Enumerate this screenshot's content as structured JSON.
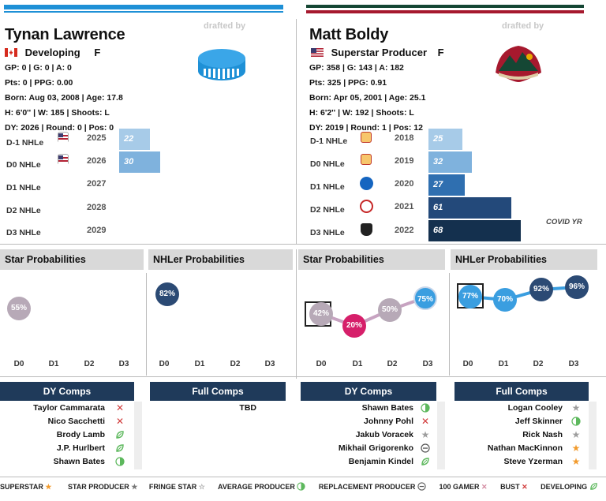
{
  "left": {
    "name": "Tynan Lawrence",
    "drafted_by": "drafted by",
    "status": "Developing",
    "position": "F",
    "stats": [
      "GP: 0 | G: 0 | A: 0",
      "Pts: 0 | PPG: 0.00",
      "Born: Aug 03, 2008 | Age: 17.8",
      "H: 6'0'' | W: 185 | Shoots: L",
      "DY: 2026 | Round: 0 | Pos: 0"
    ],
    "nhle": [
      {
        "label": "D-1 NHLe",
        "year": "2025",
        "value": "22"
      },
      {
        "label": "D0 NHLe",
        "year": "2026",
        "value": "30"
      },
      {
        "label": "D1 NHLe",
        "year": "2027",
        "value": ""
      },
      {
        "label": "D2 NHLe",
        "year": "2028",
        "value": ""
      },
      {
        "label": "D3 NHLe",
        "year": "2029",
        "value": ""
      }
    ],
    "star_title": "Star Probabilities",
    "nhler_title": "NHLer Probabilities",
    "star_probs": [
      "55%"
    ],
    "nhler_probs": [
      "82%"
    ],
    "d_labels": [
      "D0",
      "D1",
      "D2",
      "D3"
    ],
    "dy_comps_title": "DY Comps",
    "full_comps_title": "Full Comps",
    "dy_comps": [
      "Taylor Cammarata",
      "Nico Sacchetti",
      "Brody Lamb",
      "J.P. Hurlbert",
      "Shawn Bates"
    ],
    "full_comps": [
      "TBD"
    ]
  },
  "right": {
    "name": "Matt Boldy",
    "drafted_by": "drafted by",
    "status": "Superstar Producer",
    "position": "F",
    "stats": [
      "GP: 358 | G: 143 | A: 182",
      "Pts: 325 | PPG: 0.91",
      "Born: Apr 05, 2001 | Age: 25.1",
      "H: 6'2'' | W: 192 | Shoots: L",
      "DY: 2019 | Round: 1 | Pos: 12"
    ],
    "nhle": [
      {
        "label": "D-1 NHLe",
        "year": "2018",
        "value": "25"
      },
      {
        "label": "D0 NHLe",
        "year": "2019",
        "value": "32"
      },
      {
        "label": "D1 NHLe",
        "year": "2020",
        "value": "27"
      },
      {
        "label": "D2 NHLe",
        "year": "2021",
        "value": "61"
      },
      {
        "label": "D3 NHLe",
        "year": "2022",
        "value": "68"
      }
    ],
    "covid_note": "COVID YR",
    "star_title": "Star Probabilities",
    "nhler_title": "NHLer Probabilities",
    "star_probs": [
      "42%",
      "20%",
      "50%",
      "75%"
    ],
    "nhler_probs": [
      "77%",
      "70%",
      "92%",
      "96%"
    ],
    "d_labels": [
      "D0",
      "D1",
      "D2",
      "D3"
    ],
    "dy_comps_title": "DY Comps",
    "full_comps_title": "Full Comps",
    "dy_comps": [
      "Shawn Bates",
      "Johnny Pohl",
      "Jakub Voracek",
      "Mikhail Grigorenko",
      "Benjamin Kindel"
    ],
    "full_comps": [
      "Logan Cooley",
      "Jeff Skinner",
      "Rick Nash",
      "Nathan MacKinnon",
      "Steve Yzerman"
    ]
  },
  "legend": [
    "SUPERSTAR",
    "STAR PRODUCER",
    "FRINGE STAR",
    "AVERAGE PRODUCER",
    "REPLACEMENT PRODUCER",
    "100 GAMER",
    "BUST",
    "DEVELOPING"
  ],
  "colors": {
    "left_accent": "#1e90d6",
    "right_green": "#154734",
    "right_red": "#a6192e",
    "bar_light": "#a7cbe8",
    "bar_mid": "#2f6fb0",
    "bar_dark": "#14304e",
    "header_blue": "#1f3a5a"
  }
}
